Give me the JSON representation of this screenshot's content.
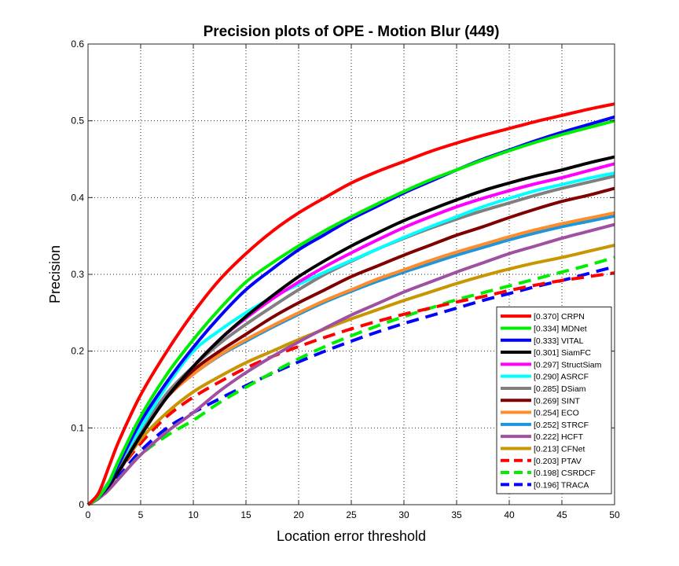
{
  "chart_data": {
    "type": "line",
    "title": "Precision plots of OPE - Motion Blur (449)",
    "xlabel": "Location error threshold",
    "ylabel": "Precision",
    "xlim": [
      0,
      50
    ],
    "ylim": [
      0,
      0.6
    ],
    "xticks": [
      0,
      5,
      10,
      15,
      20,
      25,
      30,
      35,
      40,
      45,
      50
    ],
    "yticks": [
      0,
      0.1,
      0.2,
      0.3,
      0.4,
      0.5,
      0.6
    ],
    "xtick_labels": [
      "0",
      "5",
      "10",
      "15",
      "20",
      "25",
      "30",
      "35",
      "40",
      "45",
      "50"
    ],
    "ytick_labels": [
      "0",
      "0.1",
      "0.2",
      "0.3",
      "0.4",
      "0.5",
      "0.6"
    ],
    "grid": true,
    "legend_position": "bottom-right",
    "x": [
      0,
      1,
      2,
      3,
      5,
      7.5,
      10,
      12.5,
      15,
      17.5,
      20,
      22.5,
      25,
      27.5,
      30,
      32.5,
      35,
      37.5,
      40,
      42.5,
      45,
      47.5,
      50
    ],
    "series": [
      {
        "name": "CRPN",
        "legend_label": "[0.370] CRPN",
        "color": "#ff0000",
        "dash": false,
        "values": [
          0,
          0.015,
          0.05,
          0.085,
          0.143,
          0.2,
          0.25,
          0.293,
          0.327,
          0.356,
          0.38,
          0.4,
          0.419,
          0.434,
          0.447,
          0.46,
          0.471,
          0.481,
          0.49,
          0.499,
          0.507,
          0.515,
          0.522
        ]
      },
      {
        "name": "MDNet",
        "legend_label": "[0.334] MDNet",
        "color": "#00ee00",
        "dash": false,
        "values": [
          0,
          0.01,
          0.03,
          0.06,
          0.115,
          0.17,
          0.215,
          0.255,
          0.29,
          0.315,
          0.337,
          0.357,
          0.375,
          0.392,
          0.408,
          0.423,
          0.436,
          0.449,
          0.461,
          0.472,
          0.482,
          0.491,
          0.5
        ]
      },
      {
        "name": "VITAL",
        "legend_label": "[0.333] VITAL",
        "color": "#0000ff",
        "dash": false,
        "values": [
          0,
          0.01,
          0.028,
          0.055,
          0.108,
          0.16,
          0.205,
          0.245,
          0.28,
          0.307,
          0.332,
          0.352,
          0.372,
          0.389,
          0.406,
          0.421,
          0.436,
          0.45,
          0.462,
          0.474,
          0.485,
          0.495,
          0.505
        ]
      },
      {
        "name": "SiamFC",
        "legend_label": "[0.301] SiamFC",
        "color": "#000000",
        "dash": false,
        "values": [
          0,
          0.01,
          0.025,
          0.045,
          0.09,
          0.14,
          0.18,
          0.215,
          0.245,
          0.272,
          0.297,
          0.318,
          0.337,
          0.354,
          0.37,
          0.384,
          0.397,
          0.409,
          0.419,
          0.428,
          0.436,
          0.445,
          0.453
        ]
      },
      {
        "name": "StructSiam",
        "legend_label": "[0.297] StructSiam",
        "color": "#ff00ff",
        "dash": false,
        "values": [
          0,
          0.01,
          0.025,
          0.045,
          0.09,
          0.14,
          0.18,
          0.215,
          0.243,
          0.268,
          0.29,
          0.31,
          0.328,
          0.345,
          0.361,
          0.375,
          0.388,
          0.399,
          0.409,
          0.418,
          0.426,
          0.435,
          0.444
        ]
      },
      {
        "name": "ASRCF",
        "legend_label": "[0.290] ASRCF",
        "color": "#00ffff",
        "dash": false,
        "values": [
          0,
          0.012,
          0.03,
          0.055,
          0.1,
          0.155,
          0.2,
          0.227,
          0.25,
          0.27,
          0.287,
          0.303,
          0.318,
          0.333,
          0.348,
          0.362,
          0.375,
          0.388,
          0.399,
          0.409,
          0.417,
          0.425,
          0.432
        ]
      },
      {
        "name": "DSiam",
        "legend_label": "[0.285] DSiam",
        "color": "#808080",
        "dash": false,
        "values": [
          0,
          0.012,
          0.03,
          0.052,
          0.095,
          0.145,
          0.18,
          0.21,
          0.235,
          0.258,
          0.28,
          0.3,
          0.317,
          0.333,
          0.347,
          0.36,
          0.372,
          0.383,
          0.393,
          0.403,
          0.412,
          0.42,
          0.428
        ]
      },
      {
        "name": "SINT",
        "legend_label": "[0.269] SINT",
        "color": "#800000",
        "dash": false,
        "values": [
          0,
          0.012,
          0.03,
          0.052,
          0.095,
          0.14,
          0.175,
          0.2,
          0.222,
          0.244,
          0.263,
          0.28,
          0.297,
          0.311,
          0.325,
          0.338,
          0.351,
          0.362,
          0.374,
          0.385,
          0.395,
          0.403,
          0.412
        ]
      },
      {
        "name": "ECO",
        "legend_label": "[0.254] ECO",
        "color": "#ff8c2a",
        "dash": false,
        "values": [
          0,
          0.012,
          0.03,
          0.052,
          0.095,
          0.14,
          0.17,
          0.195,
          0.215,
          0.233,
          0.25,
          0.266,
          0.28,
          0.294,
          0.306,
          0.318,
          0.329,
          0.339,
          0.349,
          0.358,
          0.366,
          0.373,
          0.38
        ]
      },
      {
        "name": "STRCF",
        "legend_label": "[0.252] STRCF",
        "color": "#1e96dc",
        "dash": false,
        "values": [
          0,
          0.012,
          0.03,
          0.052,
          0.095,
          0.14,
          0.17,
          0.194,
          0.213,
          0.231,
          0.248,
          0.264,
          0.278,
          0.291,
          0.303,
          0.314,
          0.325,
          0.335,
          0.345,
          0.354,
          0.362,
          0.369,
          0.376
        ]
      },
      {
        "name": "HCFT",
        "legend_label": "[0.222] HCFT",
        "color": "#a050a0",
        "dash": false,
        "values": [
          0,
          0.008,
          0.02,
          0.035,
          0.065,
          0.095,
          0.12,
          0.148,
          0.172,
          0.193,
          0.212,
          0.23,
          0.247,
          0.262,
          0.277,
          0.29,
          0.303,
          0.315,
          0.327,
          0.337,
          0.347,
          0.356,
          0.365
        ]
      },
      {
        "name": "CFNet",
        "legend_label": "[0.213] CFNet",
        "color": "#c89600",
        "dash": false,
        "values": [
          0,
          0.01,
          0.025,
          0.045,
          0.085,
          0.12,
          0.147,
          0.167,
          0.185,
          0.2,
          0.215,
          0.229,
          0.242,
          0.254,
          0.266,
          0.277,
          0.288,
          0.298,
          0.307,
          0.315,
          0.322,
          0.33,
          0.338
        ]
      },
      {
        "name": "PTAV",
        "legend_label": "[0.203] PTAV",
        "color": "#ff0000",
        "dash": true,
        "values": [
          0,
          0.01,
          0.025,
          0.045,
          0.08,
          0.115,
          0.14,
          0.16,
          0.178,
          0.193,
          0.206,
          0.218,
          0.229,
          0.239,
          0.248,
          0.256,
          0.264,
          0.271,
          0.279,
          0.286,
          0.292,
          0.297,
          0.302
        ]
      },
      {
        "name": "CSRDCF",
        "legend_label": "[0.198] CSRDCF",
        "color": "#00ee00",
        "dash": true,
        "values": [
          0,
          0.008,
          0.02,
          0.035,
          0.065,
          0.09,
          0.11,
          0.133,
          0.153,
          0.172,
          0.19,
          0.206,
          0.22,
          0.233,
          0.245,
          0.256,
          0.267,
          0.276,
          0.285,
          0.294,
          0.303,
          0.312,
          0.322
        ]
      },
      {
        "name": "TRACA",
        "legend_label": "[0.196] TRACA",
        "color": "#0000ff",
        "dash": true,
        "values": [
          0,
          0.008,
          0.02,
          0.038,
          0.07,
          0.1,
          0.12,
          0.138,
          0.155,
          0.171,
          0.186,
          0.2,
          0.213,
          0.225,
          0.236,
          0.246,
          0.256,
          0.266,
          0.275,
          0.284,
          0.292,
          0.301,
          0.31
        ]
      }
    ]
  }
}
